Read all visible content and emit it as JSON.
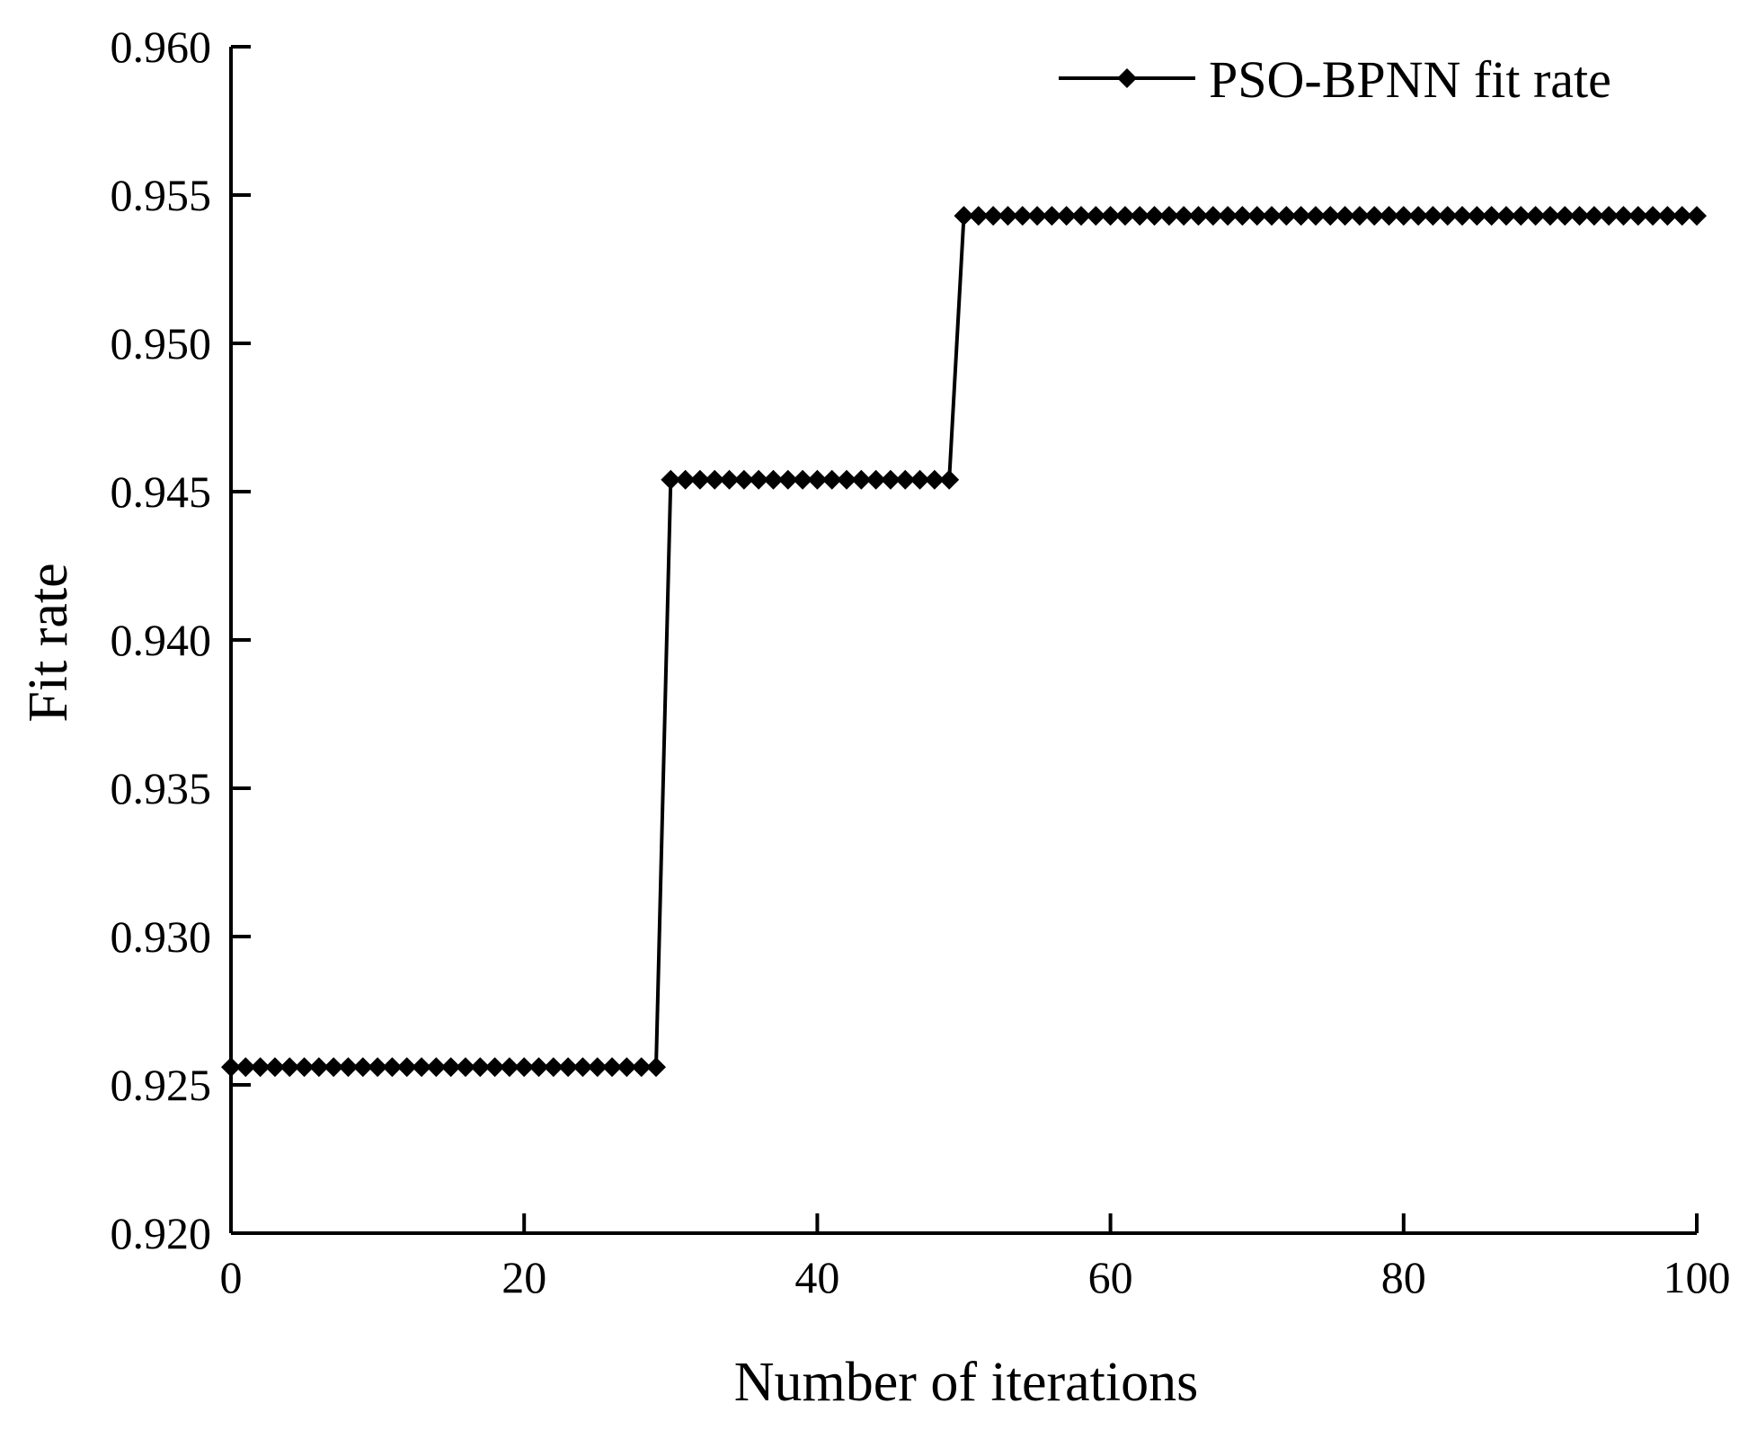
{
  "chart_data": {
    "type": "line",
    "title": "",
    "xlabel": "Number of iterations",
    "ylabel": "Fit rate",
    "xlim": [
      0,
      100
    ],
    "ylim": [
      0.92,
      0.96
    ],
    "x_ticks": [
      "0",
      "20",
      "40",
      "60",
      "80",
      "100"
    ],
    "y_ticks": [
      "0.920",
      "0.925",
      "0.930",
      "0.935",
      "0.940",
      "0.945",
      "0.950",
      "0.955",
      "0.960"
    ],
    "grid": false,
    "legend_position": "top-right",
    "series": [
      {
        "name": "PSO-BPNN fit rate",
        "color": "#000000",
        "marker": "diamond",
        "segments": [
          {
            "x_start": 0,
            "x_end": 29,
            "value": 0.9256
          },
          {
            "x_start": 30,
            "x_end": 49,
            "value": 0.9454
          },
          {
            "x_start": 50,
            "x_end": 100,
            "value": 0.9543
          }
        ]
      }
    ]
  }
}
